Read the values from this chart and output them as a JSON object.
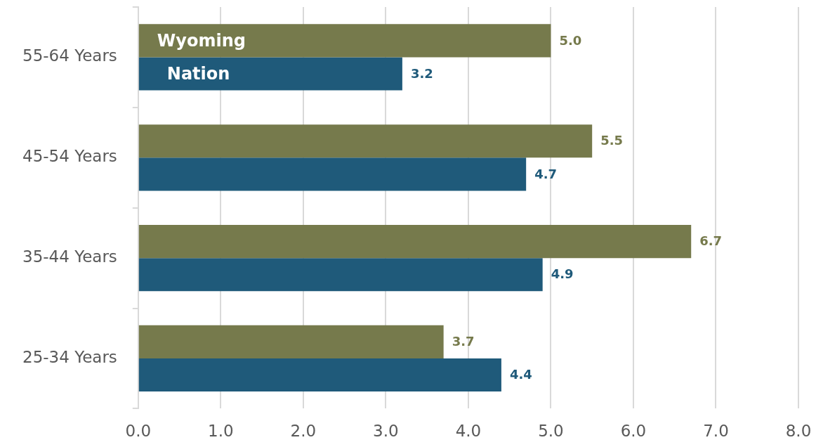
{
  "chart_data": {
    "type": "bar",
    "orientation": "horizontal",
    "categories": [
      "55-64 Years",
      "45-54 Years",
      "35-44 Years",
      "25-34 Years"
    ],
    "series": [
      {
        "name": "Wyoming",
        "color": "#767a4c",
        "values": [
          5.0,
          5.5,
          6.7,
          3.7
        ],
        "value_labels": [
          "5.0",
          "5.5",
          "6.7",
          "3.7"
        ]
      },
      {
        "name": "Nation",
        "color": "#1f5a7a",
        "values": [
          3.2,
          4.7,
          4.9,
          4.4
        ],
        "value_labels": [
          "3.2",
          "4.7",
          "4.9",
          "4.4"
        ]
      }
    ],
    "xlim": [
      0,
      8
    ],
    "xticks": [
      {
        "value": 0,
        "label": "0.0"
      },
      {
        "value": 1,
        "label": "1.0"
      },
      {
        "value": 2,
        "label": "2.0"
      },
      {
        "value": 3,
        "label": "3.0"
      },
      {
        "value": 4,
        "label": "4.0"
      },
      {
        "value": 5,
        "label": "5.0"
      },
      {
        "value": 6,
        "label": "6.0"
      },
      {
        "value": 7,
        "label": "7.0"
      },
      {
        "value": 8,
        "label": "8.0"
      }
    ],
    "grid": "x"
  }
}
